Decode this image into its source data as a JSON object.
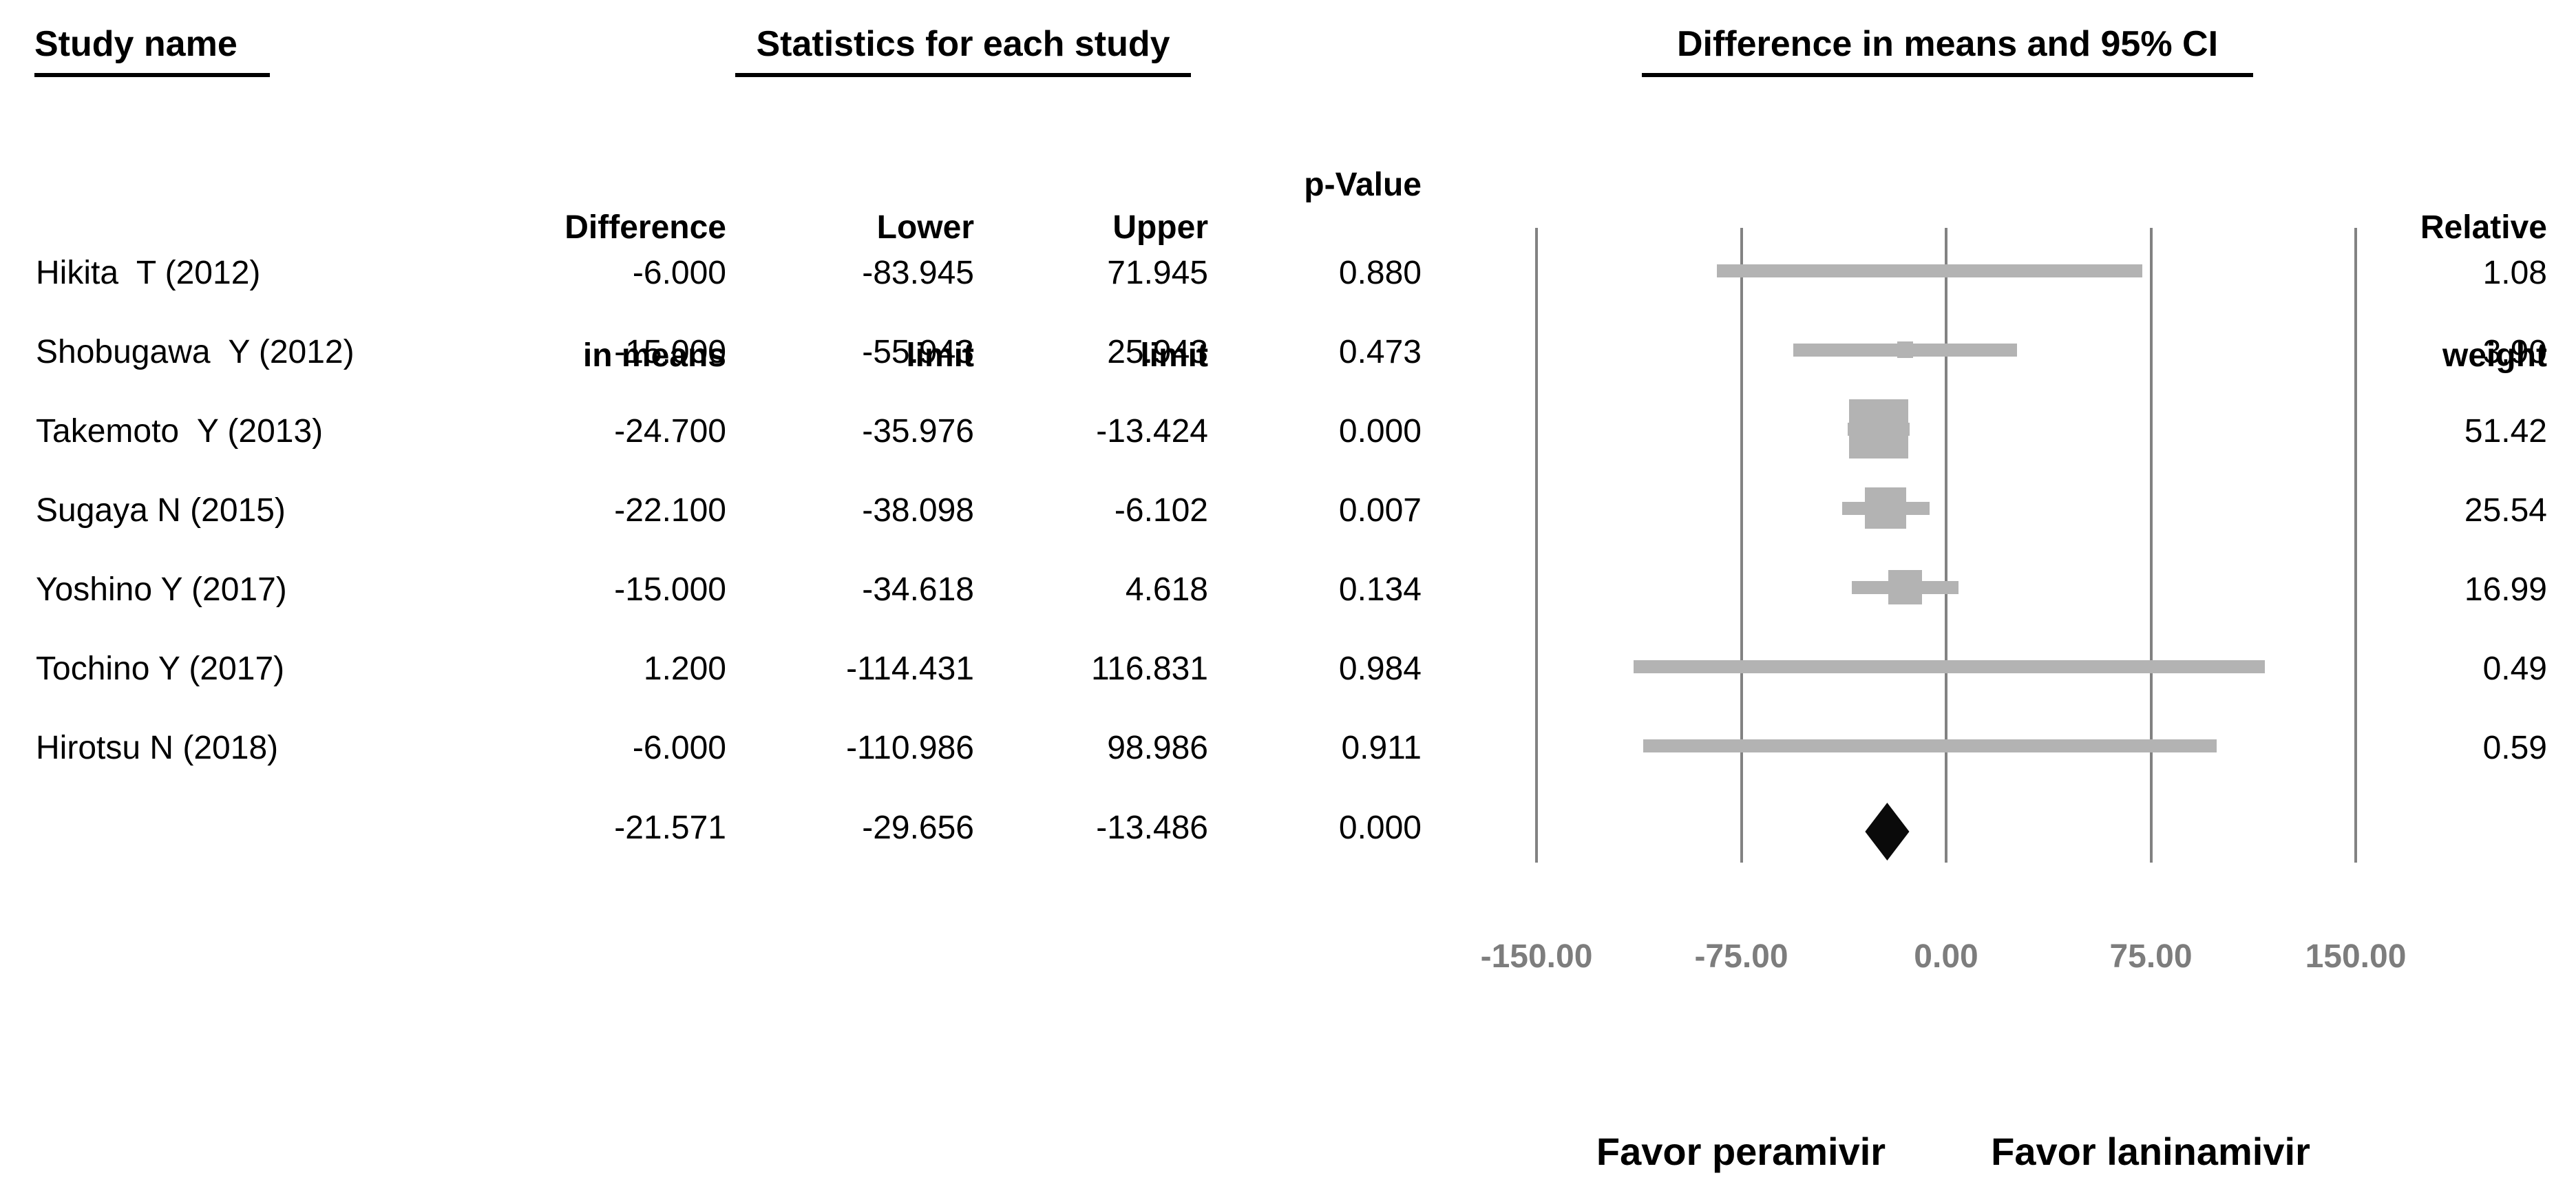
{
  "headers": {
    "study_col": "Study name",
    "stats_col": "Statistics for each study",
    "plot_col": "Difference in means and 95% CI"
  },
  "column_headers": {
    "diff": [
      "Difference",
      "in means"
    ],
    "lower": [
      "Lower",
      "limit"
    ],
    "upper": [
      "Upper",
      "limit"
    ],
    "p": "p-Value",
    "weight": [
      "Relative",
      "weight"
    ]
  },
  "chart_data": {
    "type": "forest",
    "title": "Difference in means and 95% CI",
    "xlabel": "Difference in means",
    "xlim": [
      -150,
      150
    ],
    "x_ticks": [
      -150,
      -75,
      0,
      75,
      150
    ],
    "x_tick_labels": [
      "-150.00",
      "-75.00",
      "0.00",
      "75.00",
      "150.00"
    ],
    "grid": "vertical-lines-at-ticks",
    "favor_left": "Favor peramivir",
    "favor_right": "Favor laninamivir",
    "studies": [
      {
        "name": "Hikita  T (2012)",
        "mean": -6.0,
        "lower": -83.945,
        "upper": 71.945,
        "p": 0.88,
        "weight": 1.08
      },
      {
        "name": "Shobugawa  Y (2012)",
        "mean": -15.0,
        "lower": -55.943,
        "upper": 25.943,
        "p": 0.473,
        "weight": 3.9
      },
      {
        "name": "Takemoto  Y (2013)",
        "mean": -24.7,
        "lower": -35.976,
        "upper": -13.424,
        "p": 0.0,
        "weight": 51.42
      },
      {
        "name": "Sugaya N (2015)",
        "mean": -22.1,
        "lower": -38.098,
        "upper": -6.102,
        "p": 0.007,
        "weight": 25.54
      },
      {
        "name": "Yoshino Y (2017)",
        "mean": -15.0,
        "lower": -34.618,
        "upper": 4.618,
        "p": 0.134,
        "weight": 16.99
      },
      {
        "name": "Tochino Y (2017)",
        "mean": 1.2,
        "lower": -114.431,
        "upper": 116.831,
        "p": 0.984,
        "weight": 0.49
      },
      {
        "name": "Hirotsu N (2018)",
        "mean": -6.0,
        "lower": -110.986,
        "upper": 98.986,
        "p": 0.911,
        "weight": 0.59
      }
    ],
    "overall": {
      "name": "",
      "mean": -21.571,
      "lower": -29.656,
      "upper": -13.486,
      "p": 0.0
    }
  },
  "colors": {
    "ci_bar": "#b3b3b3",
    "marker": "#b3b3b3",
    "gridline": "#828282",
    "axis_text": "#7d7d7d",
    "diamond": "#0a0a0a",
    "text": "#000000"
  }
}
